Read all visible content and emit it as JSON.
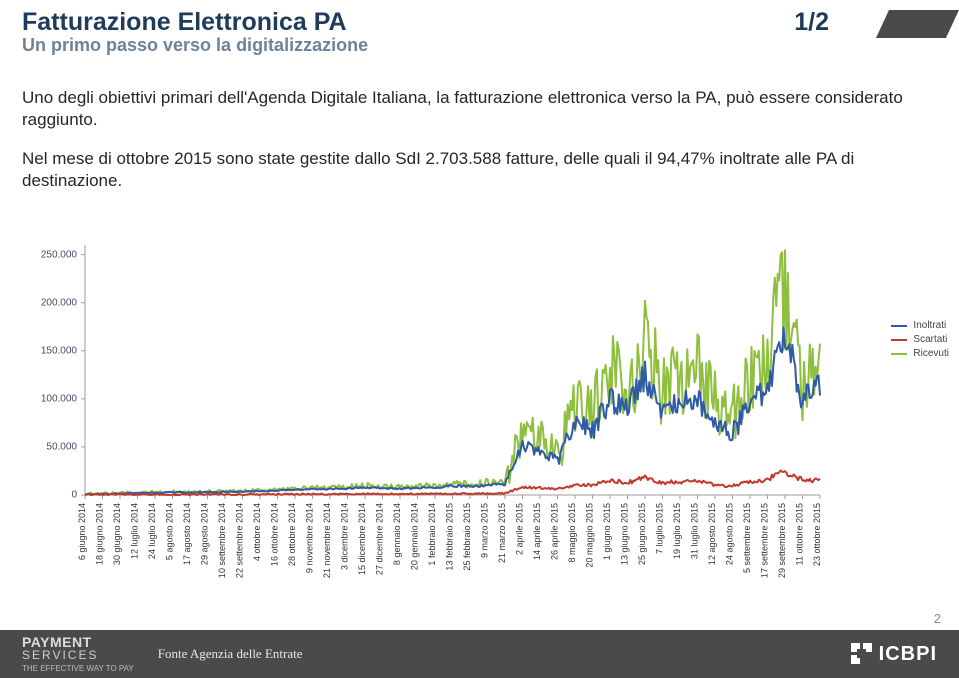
{
  "header": {
    "title": "Fatturazione Elettronica PA",
    "page_indicator": "1/2",
    "subtitle": "Un primo passo verso la digitalizzazione"
  },
  "body": {
    "paragraph1": "Uno degli obiettivi primari dell'Agenda Digitale Italiana, la fatturazione elettronica verso la PA, può essere considerato raggiunto.",
    "paragraph2": "Nel mese di ottobre 2015 sono state gestite dallo SdI 2.703.588 fatture, delle quali il 94,47% inoltrate alle PA di destinazione."
  },
  "chart": {
    "type": "line",
    "background_color": "#ffffff",
    "plot_border_color": "#bfbfbf",
    "axis_color": "#9e9e9e",
    "tick_font_size": 9,
    "title_font_size": 10,
    "line_width": 2,
    "marker_size": 4,
    "ylim": [
      0,
      260000
    ],
    "yticks": [
      0,
      50000,
      100000,
      150000,
      200000,
      250000
    ],
    "ytick_labels": [
      "0",
      "50.000",
      "100.000",
      "150.000",
      "200.000",
      "250.000"
    ],
    "xlabels": [
      "6 giugno 2014",
      "18 giugno 2014",
      "30 giugno 2014",
      "12 luglio 2014",
      "24 luglio 2014",
      "5 agosto 2014",
      "17 agosto 2014",
      "29 agosto 2014",
      "10 settembre 2014",
      "22 settembre 2014",
      "4 ottobre 2014",
      "16 ottobre 2014",
      "28 ottobre 2014",
      "9 novembre 2014",
      "21 novembre 2014",
      "3 dicembre 2014",
      "15 dicembre 2014",
      "27 dicembre 2014",
      "8 gennaio 2014",
      "20 gennaio 2014",
      "1 febbraio 2014",
      "13 febbraio 2015",
      "25 febbraio 2015",
      "9 marzo 2015",
      "21 marzo 2015",
      "2 aprile 2015",
      "14 aprile 2015",
      "26 aprile 2015",
      "8 maggio 2015",
      "20 maggio 2015",
      "1 giugno 2015",
      "13 giugno 2015",
      "25 giugno 2015",
      "7 luglio 2015",
      "19 luglio 2015",
      "31 luglio 2015",
      "12 agosto 2015",
      "24 agosto 2015",
      "5 settembre 2015",
      "17 settembre 2015",
      "29 settembre 2015",
      "11 ottobre 2015",
      "23 ottobre 2015"
    ],
    "series": [
      {
        "name": "Ricevuti",
        "color": "#8fbf3f",
        "data": [
          1000,
          1500,
          2000,
          2500,
          3000,
          3500,
          3000,
          3500,
          4000,
          4500,
          5000,
          6000,
          7000,
          7500,
          8000,
          8500,
          10000,
          9000,
          8500,
          9500,
          10000,
          12000,
          11000,
          13000,
          14000,
          65000,
          60000,
          45000,
          95000,
          85000,
          130000,
          110000,
          160000,
          115000,
          120000,
          130000,
          90000,
          80000,
          120000,
          140000,
          210000,
          130000,
          140000
        ],
        "jitter": 0.6
      },
      {
        "name": "Inoltrati",
        "color": "#2f5aa8",
        "data": [
          800,
          1200,
          1600,
          2000,
          2400,
          2800,
          2400,
          2800,
          3200,
          3600,
          4000,
          4800,
          5600,
          6000,
          6400,
          6800,
          8000,
          7200,
          6800,
          7600,
          8000,
          9600,
          8800,
          10400,
          11200,
          50000,
          47000,
          35000,
          75000,
          68000,
          100000,
          88000,
          125000,
          90000,
          95000,
          102000,
          72000,
          64000,
          95000,
          110000,
          165000,
          102000,
          112000
        ],
        "jitter": 0.25
      },
      {
        "name": "Scartati",
        "color": "#c0392b",
        "data": [
          200,
          300,
          400,
          400,
          500,
          500,
          500,
          500,
          600,
          600,
          700,
          800,
          900,
          900,
          950,
          1000,
          1200,
          1100,
          1050,
          1150,
          1200,
          1400,
          1300,
          1550,
          1700,
          8000,
          7500,
          5500,
          11000,
          10000,
          15000,
          12500,
          18000,
          13000,
          13500,
          14500,
          10000,
          9000,
          13500,
          16000,
          24000,
          14500,
          16000
        ],
        "jitter": 0.3
      }
    ],
    "legend": {
      "position": "right",
      "items": [
        {
          "label": "Inoltrati",
          "color": "#2f5aa8"
        },
        {
          "label": "Scartati",
          "color": "#c0392b"
        },
        {
          "label": "Ricevuti",
          "color": "#8fbf3f"
        }
      ]
    }
  },
  "footer": {
    "brand_line1": "PAYMENT",
    "brand_line2": "SERVICES",
    "brand_tag": "THE EFFECTIVE WAY TO PAY",
    "source": "Fonte Agenzia delle Entrate",
    "brand_right": "ICBPI",
    "slide_number": "2"
  }
}
